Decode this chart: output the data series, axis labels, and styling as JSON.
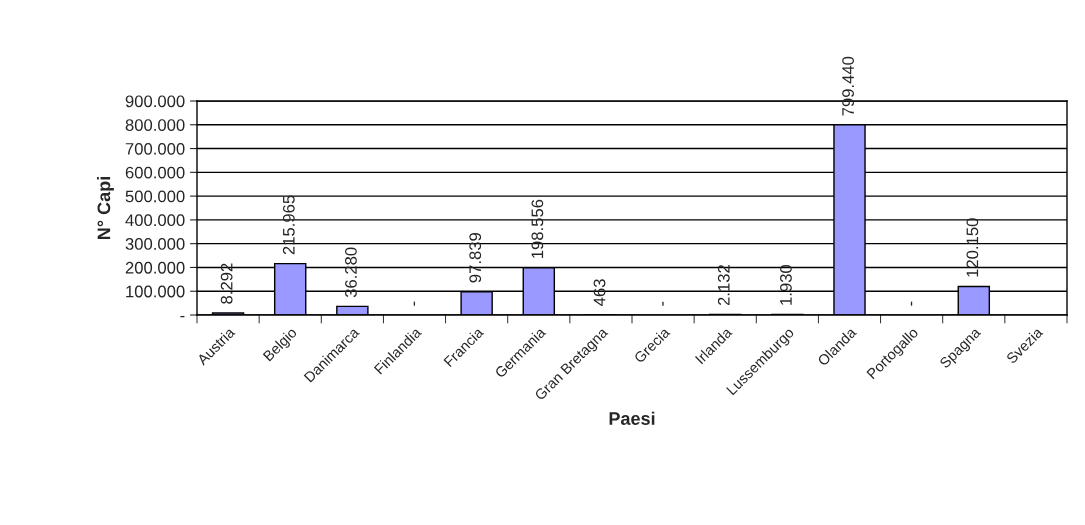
{
  "chart_data": {
    "type": "bar",
    "xlabel": "Paesi",
    "ylabel": "N° Capi",
    "categories": [
      "Austria",
      "Belgio",
      "Danimarca",
      "Finlandia",
      "Francia",
      "Germania",
      "Gran Bretagna",
      "Grecia",
      "Irlanda",
      "Lussemburgo",
      "Olanda",
      "Portogallo",
      "Spagna",
      "Svezia"
    ],
    "values": [
      8292,
      215965,
      36280,
      0,
      97839,
      198556,
      463,
      0,
      2132,
      1930,
      799440,
      0,
      120150,
      null
    ],
    "value_labels": [
      "8.292",
      "215.965",
      "36.280",
      "-",
      "97.839",
      "198.556",
      "463",
      "-",
      "2.132",
      "1.930",
      "799.440",
      "-",
      "120.150",
      null
    ],
    "color": "#9999ff",
    "ylim": [
      0,
      900000
    ],
    "yticks": [
      {
        "value": 0,
        "label": "-"
      },
      {
        "value": 100000,
        "label": "100.000"
      },
      {
        "value": 200000,
        "label": "200.000"
      },
      {
        "value": 300000,
        "label": "300.000"
      },
      {
        "value": 400000,
        "label": "400.000"
      },
      {
        "value": 500000,
        "label": "500.000"
      },
      {
        "value": 600000,
        "label": "600.000"
      },
      {
        "value": 700000,
        "label": "700.000"
      },
      {
        "value": 800000,
        "label": "800.000"
      },
      {
        "value": 900000,
        "label": "900.000"
      }
    ],
    "grid": "y",
    "legend": false
  }
}
